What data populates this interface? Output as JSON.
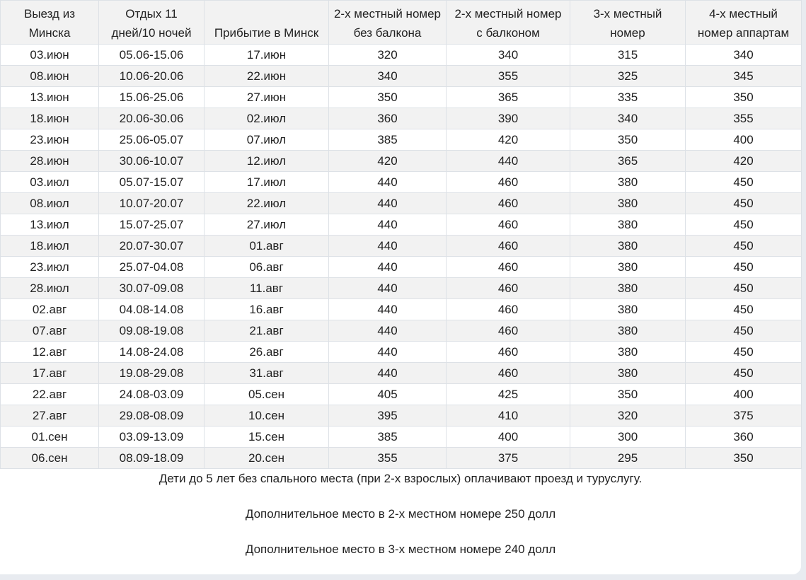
{
  "table": {
    "headers": [
      [
        "Выезд из",
        "Минска"
      ],
      [
        "Отдых 11",
        "дней/10 ночей"
      ],
      [
        "",
        "Прибытие в Минск"
      ],
      [
        "2-х местный номер",
        "без балкона"
      ],
      [
        "2-х местный номер",
        "с балконом"
      ],
      [
        "3-х местный",
        "номер"
      ],
      [
        "4-х местный",
        "номер аппартам"
      ]
    ],
    "rows": [
      [
        "03.июн",
        "05.06-15.06",
        "17.июн",
        "320",
        "340",
        "315",
        "340"
      ],
      [
        "08.июн",
        "10.06-20.06",
        "22.июн",
        "340",
        "355",
        "325",
        "345"
      ],
      [
        "13.июн",
        "15.06-25.06",
        "27.июн",
        "350",
        "365",
        "335",
        "350"
      ],
      [
        "18.июн",
        "20.06-30.06",
        "02.июл",
        "360",
        "390",
        "340",
        "355"
      ],
      [
        "23.июн",
        "25.06-05.07",
        "07.июл",
        "385",
        "420",
        "350",
        "400"
      ],
      [
        "28.июн",
        "30.06-10.07",
        "12.июл",
        "420",
        "440",
        "365",
        "420"
      ],
      [
        "03.июл",
        "05.07-15.07",
        "17.июл",
        "440",
        "460",
        "380",
        "450"
      ],
      [
        "08.июл",
        "10.07-20.07",
        "22.июл",
        "440",
        "460",
        "380",
        "450"
      ],
      [
        "13.июл",
        "15.07-25.07",
        "27.июл",
        "440",
        "460",
        "380",
        "450"
      ],
      [
        "18.июл",
        "20.07-30.07",
        "01.авг",
        "440",
        "460",
        "380",
        "450"
      ],
      [
        "23.июл",
        "25.07-04.08",
        "06.авг",
        "440",
        "460",
        "380",
        "450"
      ],
      [
        "28.июл",
        "30.07-09.08",
        "11.авг",
        "440",
        "460",
        "380",
        "450"
      ],
      [
        "02.авг",
        "04.08-14.08",
        "16.авг",
        "440",
        "460",
        "380",
        "450"
      ],
      [
        "07.авг",
        "09.08-19.08",
        "21.авг",
        "440",
        "460",
        "380",
        "450"
      ],
      [
        "12.авг",
        "14.08-24.08",
        "26.авг",
        "440",
        "460",
        "380",
        "450"
      ],
      [
        "17.авг",
        "19.08-29.08",
        "31.авг",
        "440",
        "460",
        "380",
        "450"
      ],
      [
        "22.авг",
        "24.08-03.09",
        "05.сен",
        "405",
        "425",
        "350",
        "400"
      ],
      [
        "27.авг",
        "29.08-08.09",
        "10.сен",
        "395",
        "410",
        "320",
        "375"
      ],
      [
        "01.сен",
        "03.09-13.09",
        "15.сен",
        "385",
        "400",
        "300",
        "360"
      ],
      [
        "06.сен",
        "08.09-18.09",
        "20.сен",
        "355",
        "375",
        "295",
        "350"
      ]
    ]
  },
  "notes": [
    "Дети до 5 лет без спального места (при 2-х взрослых) оплачивают проезд и туруслугу.",
    "Дополнительное место в 2-х местном номере 250 долл",
    "Дополнительное место в 3-х местном номере 240 долл"
  ]
}
